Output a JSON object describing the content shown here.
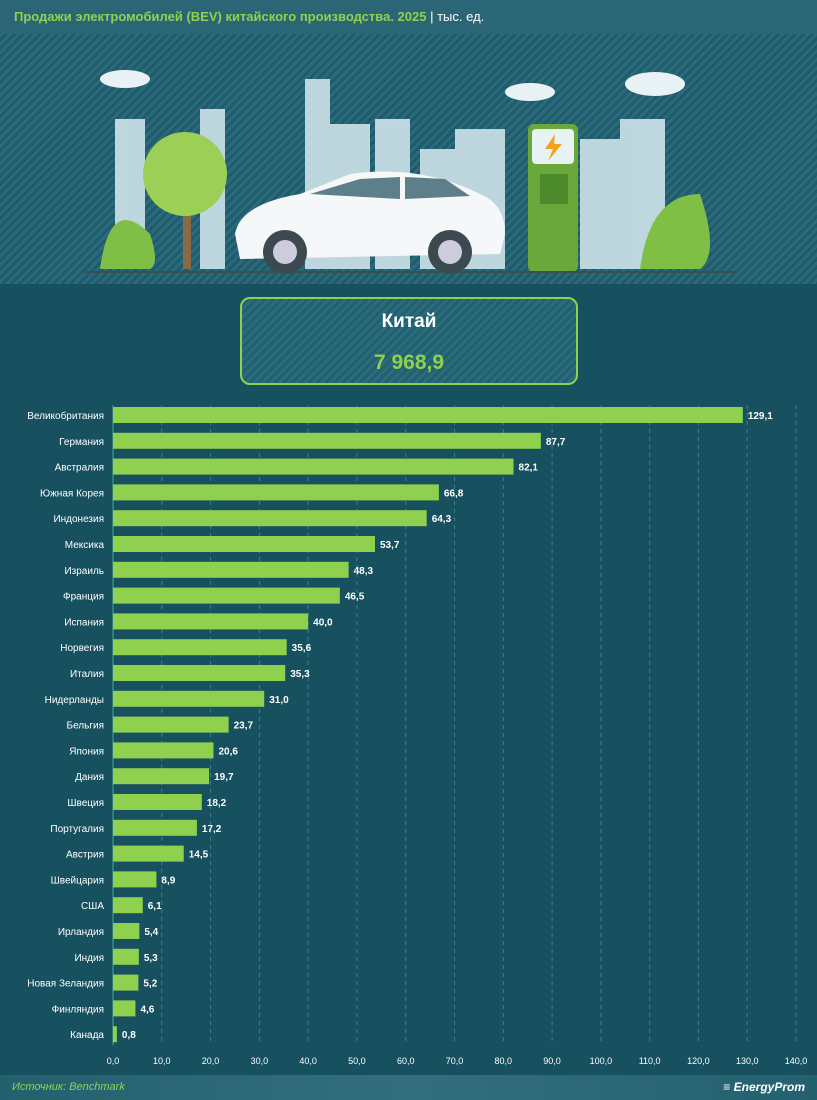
{
  "header": {
    "title": "Продажи электромобилей (BEV) китайского производства. 2025",
    "unit": "| тыс. ед."
  },
  "highlight": {
    "country": "Китай",
    "value": "7 968,9"
  },
  "footer": {
    "source": "Источник: Benchmark",
    "logo": "EnergyProm"
  },
  "colors": {
    "bar": "#8fd14f",
    "background": "#17505f"
  },
  "chart_data": {
    "type": "bar",
    "orientation": "horizontal",
    "categories": [
      "Великобритания",
      "Германия",
      "Австралия",
      "Южная Корея",
      "Индонезия",
      "Мексика",
      "Израиль",
      "Франция",
      "Испания",
      "Норвегия",
      "Италия",
      "Нидерланды",
      "Бельгия",
      "Япония",
      "Дания",
      "Швеция",
      "Португалия",
      "Австрия",
      "Швейцария",
      "США",
      "Ирландия",
      "Индия",
      "Новая Зеландия",
      "Финляндия",
      "Канада"
    ],
    "values": [
      129.1,
      87.7,
      82.1,
      66.8,
      64.3,
      53.7,
      48.3,
      46.5,
      40.0,
      35.6,
      35.3,
      31.0,
      23.7,
      20.6,
      19.7,
      18.2,
      17.2,
      14.5,
      8.9,
      6.1,
      5.4,
      5.3,
      5.2,
      4.6,
      0.8
    ],
    "labels": [
      "129,1",
      "87,7",
      "82,1",
      "66,8",
      "64,3",
      "53,7",
      "48,3",
      "46,5",
      "40,0",
      "35,6",
      "35,3",
      "31,0",
      "23,7",
      "20,6",
      "19,7",
      "18,2",
      "17,2",
      "14,5",
      "8,9",
      "6,1",
      "5,4",
      "5,3",
      "5,2",
      "4,6",
      "0,8"
    ],
    "xlim": [
      0,
      140
    ],
    "xticks": [
      "0,0",
      "10,0",
      "20,0",
      "30,0",
      "40,0",
      "50,0",
      "60,0",
      "70,0",
      "80,0",
      "90,0",
      "100,0",
      "110,0",
      "120,0",
      "130,0",
      "140,0"
    ],
    "grid": true
  }
}
